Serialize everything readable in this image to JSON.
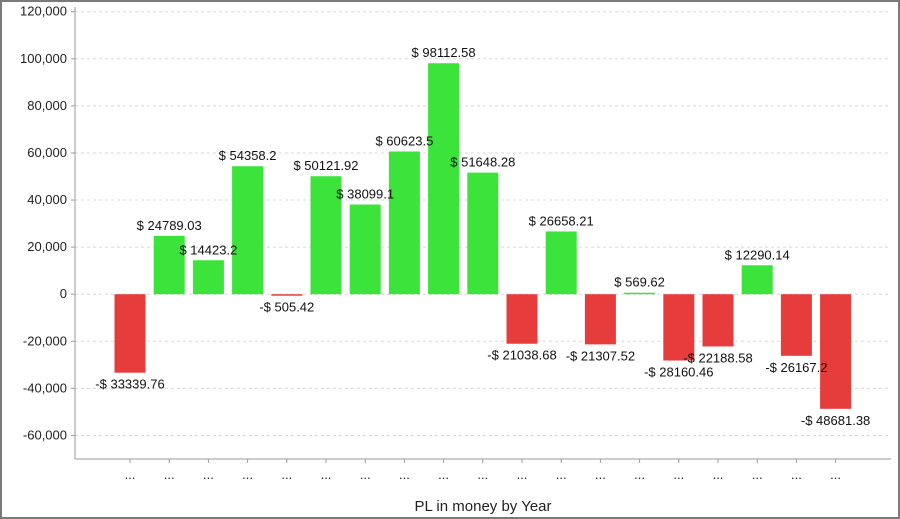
{
  "chart_data": {
    "type": "bar",
    "xlabel": "PL in money by Year",
    "ylabel": "",
    "ylim": [
      -70000,
      122000
    ],
    "yticks": [
      120000,
      100000,
      80000,
      60000,
      40000,
      20000,
      0,
      -20000,
      -40000,
      -60000
    ],
    "ytick_labels": [
      "120,000",
      "100,000",
      "80,000",
      "60,000",
      "40,000",
      "20,000",
      "0",
      "-20,000",
      "-40,000",
      "-60,000"
    ],
    "grid": true,
    "colors": {
      "positive": "#3be33b",
      "negative": "#e63c3c"
    },
    "categories": [
      "...",
      "...",
      "...",
      "...",
      "...",
      "...",
      "...",
      "...",
      "...",
      "...",
      "...",
      "...",
      "...",
      "...",
      "...",
      "...",
      "...",
      "...",
      "..."
    ],
    "values": [
      -33339.76,
      24789.03,
      14423.2,
      54358.2,
      -505.42,
      50121.92,
      38099.1,
      60623.5,
      98112.58,
      51648.28,
      -21038.68,
      26658.21,
      -21307.52,
      569.62,
      -28160.46,
      -22188.58,
      12290.14,
      -26167.2,
      -48681.38
    ],
    "data_labels": [
      "-$ 33339.76",
      "$ 24789.03",
      "$ 14423.2",
      "$ 54358.2",
      "-$ 505.42",
      "$ 50121.92",
      "$ 38099.1",
      "$ 60623.5",
      "$ 98112.58",
      "$ 51648.28",
      "-$ 21038.68",
      "$ 26658.21",
      "-$ 21307.52",
      "$ 569.62",
      "-$ 28160.46",
      "-$ 22188.58",
      "$ 12290.14",
      "-$ 26167.2",
      "-$ 48681.38"
    ]
  }
}
